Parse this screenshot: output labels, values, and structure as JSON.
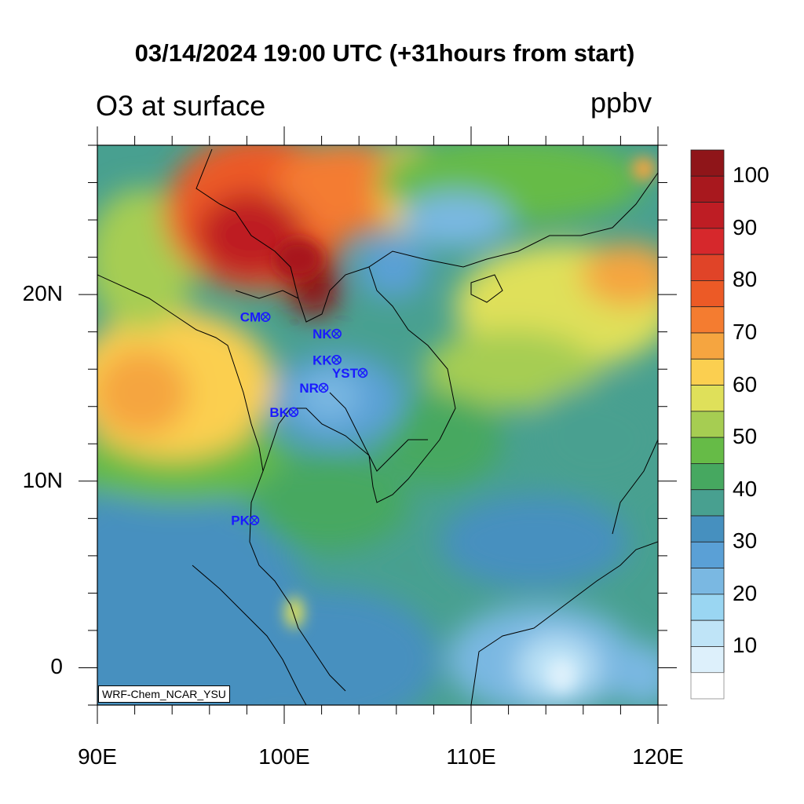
{
  "title": "03/14/2024 19:00 UTC (+31hours from start)",
  "subtitle": "O3 at surface",
  "units": "ppbv",
  "credit": "WRF-Chem_NCAR_YSU",
  "map": {
    "lon_range": [
      90,
      120
    ],
    "lat_range": [
      -2,
      28
    ],
    "x_ticks": [
      {
        "value": 90,
        "label": "90E"
      },
      {
        "value": 100,
        "label": "100E"
      },
      {
        "value": 110,
        "label": "110E"
      },
      {
        "value": 120,
        "label": "120E"
      }
    ],
    "y_ticks": [
      {
        "value": 20,
        "label": "20N"
      },
      {
        "value": 10,
        "label": "10N"
      },
      {
        "value": 0,
        "label": "0"
      }
    ],
    "stations": [
      {
        "label": "CM",
        "lon": 99.0,
        "lat": 18.8
      },
      {
        "label": "NK",
        "lon": 102.8,
        "lat": 17.9
      },
      {
        "label": "KK",
        "lon": 102.8,
        "lat": 16.5
      },
      {
        "label": "YST",
        "lon": 104.2,
        "lat": 15.8
      },
      {
        "label": "NR",
        "lon": 102.1,
        "lat": 15.0
      },
      {
        "label": "BK",
        "lon": 100.5,
        "lat": 13.7
      },
      {
        "label": "PK",
        "lon": 98.4,
        "lat": 7.9
      }
    ],
    "station_color": "#1a1aff"
  },
  "colorbar": {
    "levels": [
      5,
      10,
      15,
      20,
      25,
      30,
      35,
      40,
      45,
      50,
      55,
      60,
      65,
      70,
      75,
      80,
      85,
      90,
      95,
      100
    ],
    "labels": [
      "100",
      "90",
      "80",
      "70",
      "60",
      "50",
      "40",
      "30",
      "20",
      "10"
    ],
    "label_values": [
      100,
      90,
      80,
      70,
      60,
      50,
      40,
      30,
      20,
      10
    ],
    "colors_top_to_bottom": [
      "#8f1519",
      "#a8181e",
      "#be1d24",
      "#d6282c",
      "#e04428",
      "#ec5a26",
      "#f47c30",
      "#f5a540",
      "#fbcf50",
      "#dfe05a",
      "#a6cd52",
      "#66bb47",
      "#46a860",
      "#48a090",
      "#4690bf",
      "#5aa0d6",
      "#7ab8e2",
      "#9ad6f2",
      "#bfe4f7",
      "#ddf0fb",
      "#ffffff"
    ]
  }
}
